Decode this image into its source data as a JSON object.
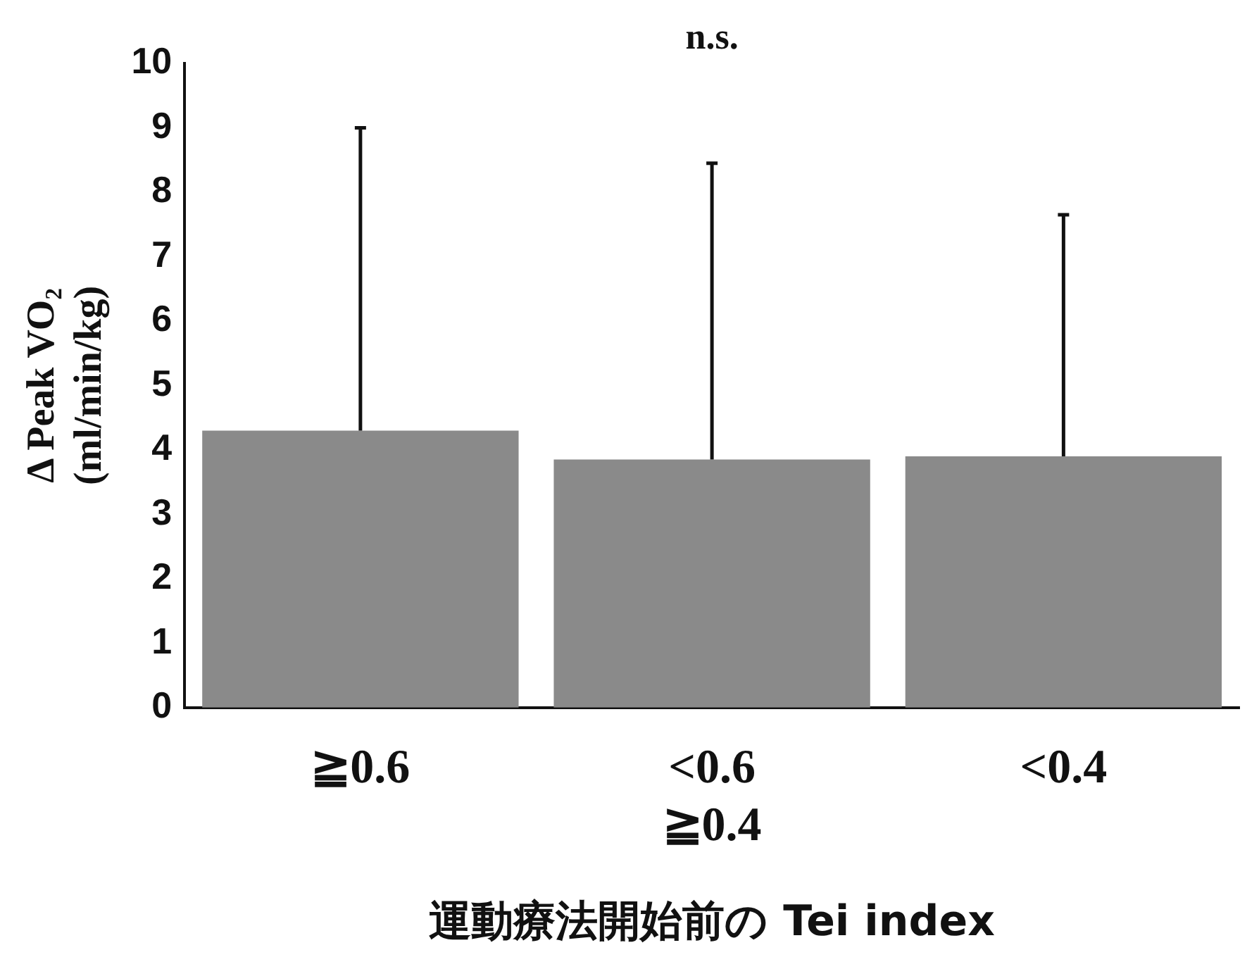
{
  "chart_data": {
    "type": "bar",
    "ylabel": "Δ Peak VO₂\n(ml/min/kg)",
    "xlabel": "運動療法開始前の Tei index",
    "categories": [
      "≧0.6",
      "<0.6\n≧0.4",
      "<0.4"
    ],
    "values": [
      4.3,
      3.85,
      3.9
    ],
    "errors": [
      [
        4.3,
        9.0
      ],
      [
        3.85,
        8.45
      ],
      [
        3.9,
        7.65
      ]
    ],
    "color": "#8a8a8a",
    "ylim": [
      0,
      10
    ],
    "yticks": [
      0,
      1,
      2,
      3,
      4,
      5,
      6,
      7,
      8,
      9,
      10
    ],
    "annotations": [
      "n.s."
    ]
  }
}
